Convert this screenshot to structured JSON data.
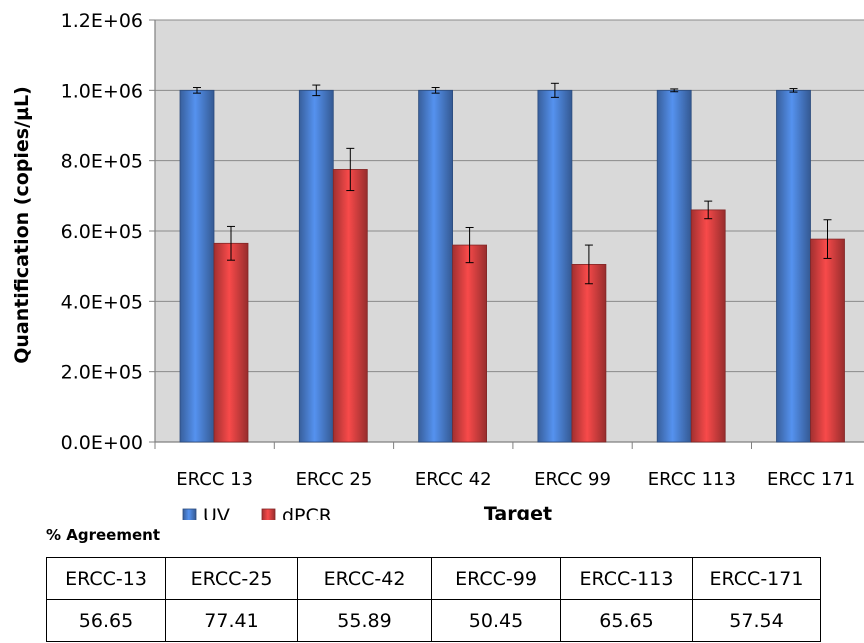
{
  "chart_data": {
    "type": "bar",
    "categories": [
      "ERCC 13",
      "ERCC 25",
      "ERCC 42",
      "ERCC 99",
      "ERCC 113",
      "ERCC 171"
    ],
    "series": [
      {
        "name": "UV",
        "values": [
          1000000,
          1000000,
          1000000,
          1000000,
          1000000,
          1000000
        ],
        "errors": [
          8000,
          15000,
          8000,
          20000,
          4000,
          5000
        ],
        "color": "#4a7fd0"
      },
      {
        "name": "dPCR",
        "values": [
          565000,
          775000,
          560000,
          505000,
          660000,
          577000
        ],
        "errors": [
          48000,
          60000,
          50000,
          55000,
          25000,
          55000
        ],
        "color": "#d84040"
      }
    ],
    "title": "",
    "xlabel": "Target",
    "ylabel": "Quantification  (copies/µL)",
    "ylim": [
      0,
      1200000
    ],
    "yticks": [
      "0.0E+00",
      "2.0E+05",
      "4.0E+05",
      "6.0E+05",
      "8.0E+05",
      "1.0E+06",
      "1.2E+06"
    ],
    "grid": true,
    "legend_position": "bottom-left"
  },
  "agreement": {
    "title": "% Agreement",
    "headers": [
      "ERCC-13",
      "ERCC-25",
      "ERCC-42",
      "ERCC-99",
      "ERCC-113",
      "ERCC-171"
    ],
    "values": [
      "56.65",
      "77.41",
      "55.89",
      "50.45",
      "65.65",
      "57.54"
    ]
  }
}
